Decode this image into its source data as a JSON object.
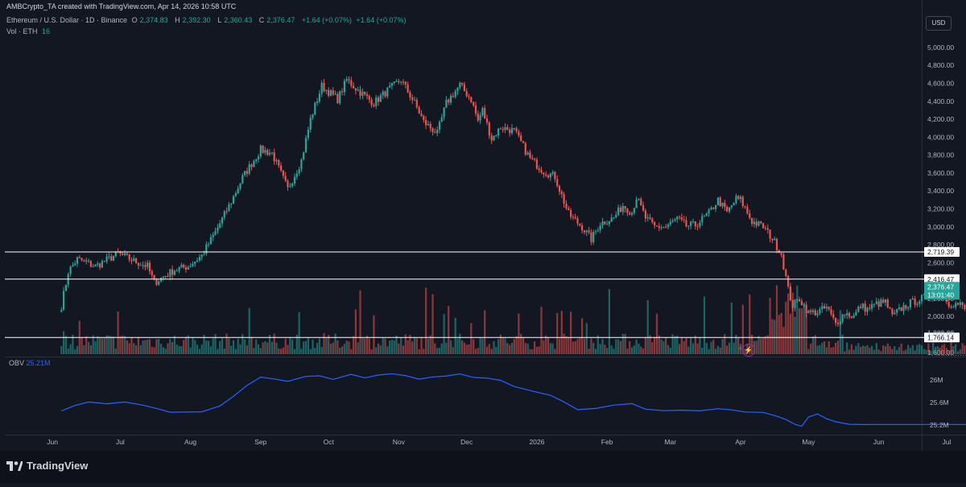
{
  "header": {
    "credit": "AMBCrypto_TA created with TradingView.com, Apr 14, 2026 10:58 UTC",
    "symbol": "Ethereum / U.S. Dollar · 1D · Binance",
    "o_label": "O",
    "o_value": "2,374.83",
    "h_label": "H",
    "h_value": "2,392.30",
    "l_label": "L",
    "l_value": "2,360.43",
    "c_label": "C",
    "c_value": "2,376.47",
    "change1": "+1.64 (+0.07%)",
    "change2": "+1.64 (+0.07%)",
    "vol_label": "Vol · ETH",
    "vol_value": "16"
  },
  "currency_button": "USD",
  "obv_label": "OBV",
  "obv_value": "25.21M",
  "footer_brand": "TradingView",
  "colors": {
    "up": "#26a69a",
    "down": "#ef5350",
    "obv": "#2962ff",
    "bg": "#131722"
  },
  "chart_data": [
    {
      "type": "candlestick",
      "title": "Ethereum / U.S. Dollar · 1D · Binance",
      "ylim": [
        1580,
        5080
      ],
      "y_ticks": [
        "5,000.00",
        "4,800.00",
        "4,600.00",
        "4,400.00",
        "4,200.00",
        "4,000.00",
        "3,800.00",
        "3,600.00",
        "3,400.00",
        "3,200.00",
        "3,000.00",
        "2,800.00",
        "2,600.00",
        "2,400.00",
        "2,200.00",
        "2,000.00",
        "1,800.00",
        "1,600.00"
      ],
      "x_ticks": [
        "Jun",
        "Jul",
        "Aug",
        "Sep",
        "Oct",
        "Nov",
        "Dec",
        "2026",
        "Feb",
        "Mar",
        "Apr",
        "May",
        "Jun",
        "Jul"
      ],
      "x_range_days": [
        -25,
        380
      ],
      "waypoints": [
        [
          0,
          2120
        ],
        [
          3,
          2500
        ],
        [
          7,
          2640
        ],
        [
          15,
          2560
        ],
        [
          25,
          2700
        ],
        [
          32,
          2620
        ],
        [
          38,
          2560
        ],
        [
          41,
          2380
        ],
        [
          50,
          2520
        ],
        [
          56,
          2560
        ],
        [
          62,
          2680
        ],
        [
          68,
          2940
        ],
        [
          75,
          3280
        ],
        [
          80,
          3550
        ],
        [
          88,
          3860
        ],
        [
          93,
          3820
        ],
        [
          100,
          3420
        ],
        [
          106,
          3740
        ],
        [
          110,
          4200
        ],
        [
          115,
          4570
        ],
        [
          122,
          4420
        ],
        [
          126,
          4640
        ],
        [
          132,
          4500
        ],
        [
          138,
          4380
        ],
        [
          144,
          4520
        ],
        [
          150,
          4640
        ],
        [
          156,
          4380
        ],
        [
          160,
          4170
        ],
        [
          166,
          4040
        ],
        [
          170,
          4380
        ],
        [
          176,
          4580
        ],
        [
          181,
          4420
        ],
        [
          184,
          4180
        ],
        [
          186,
          4300
        ],
        [
          190,
          3980
        ],
        [
          194,
          4110
        ],
        [
          200,
          4070
        ],
        [
          207,
          3760
        ],
        [
          213,
          3620
        ],
        [
          218,
          3560
        ],
        [
          224,
          3140
        ],
        [
          230,
          3000
        ],
        [
          234,
          2860
        ],
        [
          238,
          3040
        ],
        [
          244,
          3100
        ],
        [
          248,
          3240
        ],
        [
          252,
          3160
        ],
        [
          254,
          3330
        ],
        [
          258,
          3100
        ],
        [
          262,
          3000
        ],
        [
          267,
          3000
        ],
        [
          272,
          3090
        ],
        [
          276,
          3010
        ],
        [
          280,
          3020
        ],
        [
          286,
          3150
        ],
        [
          290,
          3300
        ],
        [
          294,
          3160
        ],
        [
          298,
          3310
        ],
        [
          300,
          3300
        ],
        [
          305,
          3060
        ],
        [
          310,
          3000
        ],
        [
          314,
          2870
        ],
        [
          318,
          2700
        ],
        [
          321,
          2300
        ],
        [
          323,
          2120
        ],
        [
          326,
          2200
        ],
        [
          330,
          2040
        ],
        [
          334,
          2050
        ],
        [
          338,
          2100
        ],
        [
          342,
          1920
        ],
        [
          346,
          2040
        ],
        [
          350,
          2000
        ],
        [
          353,
          2120
        ],
        [
          356,
          2080
        ],
        [
          360,
          2140
        ],
        [
          364,
          2160
        ],
        [
          367,
          2000
        ],
        [
          371,
          2090
        ],
        [
          375,
          2150
        ],
        [
          378,
          2180
        ],
        [
          382,
          2220
        ],
        [
          385,
          2320
        ],
        [
          388,
          2300
        ],
        [
          392,
          2150
        ],
        [
          397,
          2130
        ],
        [
          400,
          2060
        ],
        [
          404,
          2060
        ],
        [
          408,
          2120
        ],
        [
          412,
          2200
        ],
        [
          416,
          2280
        ],
        [
          420,
          2320
        ],
        [
          422,
          2376.47
        ]
      ],
      "last_day": 422,
      "price_levels": [
        {
          "value": 2719.39,
          "label": "2,719.39"
        },
        {
          "value": 2416.47,
          "label": "2,416.47"
        },
        {
          "value": 1766.14,
          "label": "1,766.14"
        }
      ],
      "current_price": {
        "value": 2376.47,
        "label": "2,376.47",
        "countdown": "13:01:40"
      },
      "partial_tick": "1,800.00"
    },
    {
      "type": "line",
      "name": "OBV",
      "ylim": [
        25.1,
        26.2
      ],
      "y_ticks": [
        "26M",
        "25.6M",
        "25.2M"
      ],
      "last_value": 25.21
    }
  ]
}
